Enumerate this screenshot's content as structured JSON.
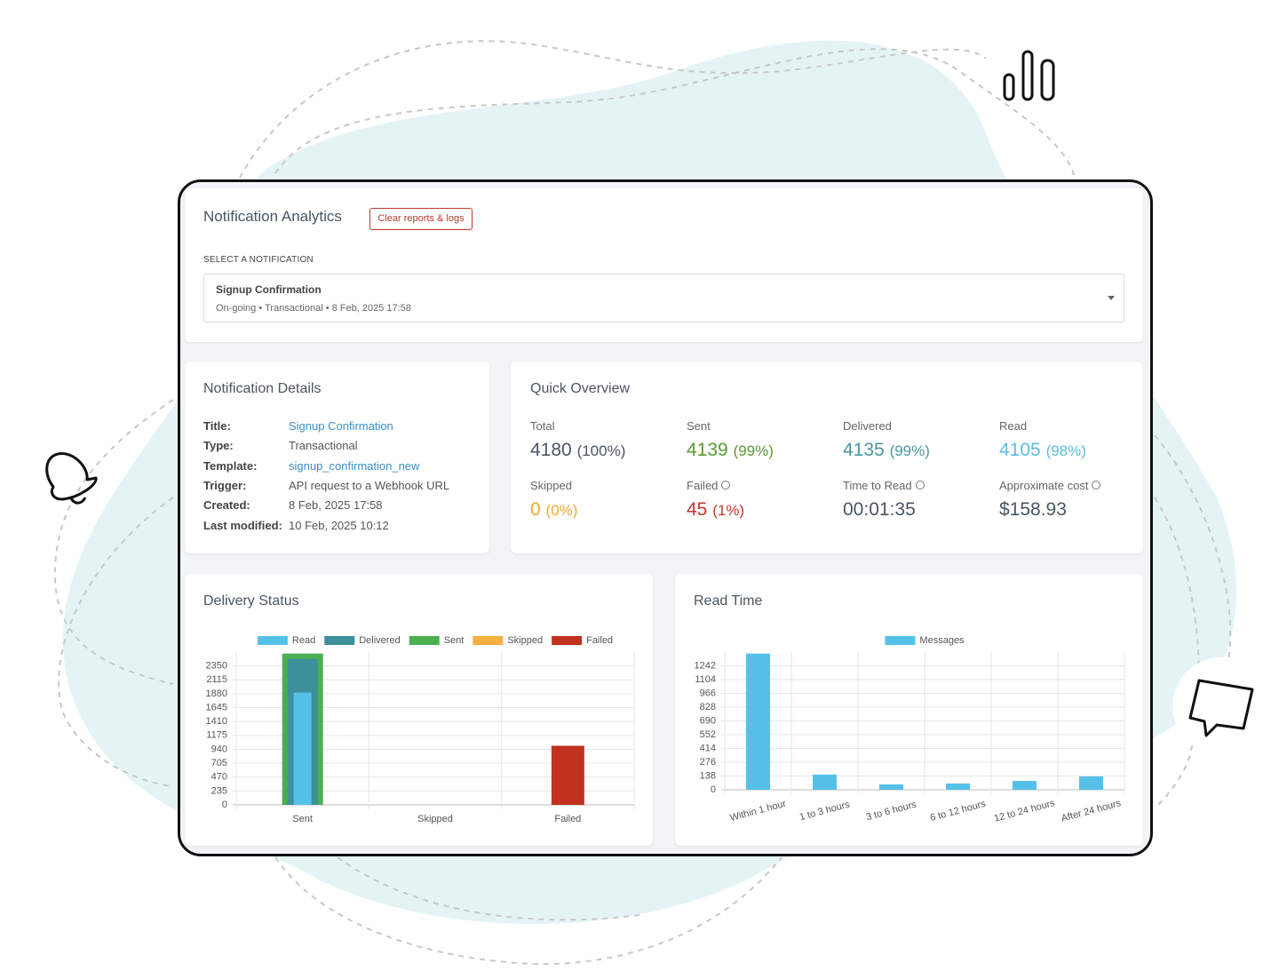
{
  "header": {
    "title": "Notification Analytics",
    "button": "Clear reports & logs"
  },
  "select": {
    "label": "SELECT A NOTIFICATION",
    "name": "Signup Confirmation",
    "meta": "On-going • Transactional • 8 Feb, 2025 17:58"
  },
  "details": {
    "title": "Notification Details",
    "rows": [
      [
        "Title:",
        "Signup Confirmation"
      ],
      [
        "Type:",
        "Transactional"
      ],
      [
        "Template:",
        "signup_confirmation_new"
      ],
      [
        "Trigger:",
        "API request to a Webhook URL"
      ],
      [
        "Created:",
        "8 Feb, 2025 17:58"
      ],
      [
        "Last modified:",
        "10 Feb, 2025 10:12"
      ]
    ]
  },
  "overview": {
    "title": "Quick Overview",
    "stats": [
      {
        "label": "Total",
        "value": "4180",
        "pct": "(100%)"
      },
      {
        "label": "Sent",
        "value": "4139",
        "pct": "(99%)"
      },
      {
        "label": "Delivered",
        "value": "4135",
        "pct": "(99%)"
      },
      {
        "label": "Read",
        "value": "4105",
        "pct": "(98%)"
      },
      {
        "label": "Skipped",
        "value": "0",
        "pct": "(0%)"
      },
      {
        "label": "Failed",
        "value": "45",
        "pct": "(1%)"
      },
      {
        "label": "Time to Read",
        "value": "00:01:35"
      },
      {
        "label": "Approximate cost",
        "value": "$158.93"
      }
    ]
  },
  "chart_data": [
    {
      "type": "bar",
      "title": "Delivery Status",
      "categories": [
        "Sent",
        "Skipped",
        "Failed"
      ],
      "series": [
        {
          "name": "Read",
          "color": "#56c1e8",
          "values": [
            1900,
            0,
            0
          ]
        },
        {
          "name": "Delivered",
          "color": "#3d9099",
          "values": [
            2470,
            0,
            0
          ]
        },
        {
          "name": "Sent",
          "color": "#4caf50",
          "values": [
            2560,
            0,
            0
          ]
        },
        {
          "name": "Skipped",
          "color": "#f5b042",
          "values": [
            0,
            0,
            0
          ]
        },
        {
          "name": "Failed",
          "color": "#c0321f",
          "values": [
            0,
            0,
            1000
          ]
        }
      ],
      "ylim": [
        0,
        2585
      ],
      "yticks": [
        0,
        235,
        470,
        705,
        940,
        1175,
        1410,
        1645,
        1880,
        2115,
        2350
      ],
      "grid": true,
      "legend": "top"
    },
    {
      "type": "bar",
      "title": "Read Time",
      "categories": [
        "Within 1 hour",
        "1 to 3 hours",
        "3 to 6 hours",
        "6 to 12 hours",
        "12 to 24 hours",
        "After 24 hours"
      ],
      "series": [
        {
          "name": "Messages",
          "color": "#56c1e8",
          "values": [
            1365,
            152,
            54,
            63,
            89,
            134
          ]
        }
      ],
      "ylim": [
        0,
        1380
      ],
      "yticks": [
        0,
        138,
        276,
        414,
        552,
        690,
        828,
        966,
        1104,
        1242
      ],
      "grid": true,
      "legend": "top"
    }
  ]
}
